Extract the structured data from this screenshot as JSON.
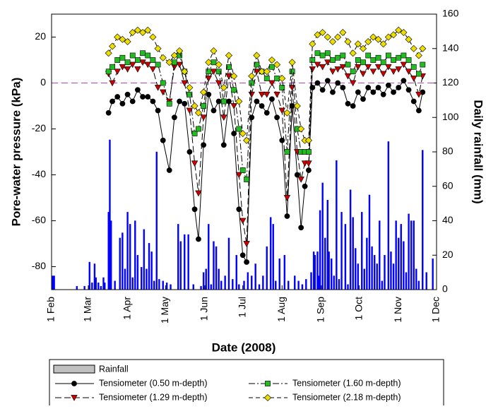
{
  "chart_data": {
    "type": "line",
    "xlabel": "Date (2008)",
    "ylabel": "Pore-water pressure (kPa)",
    "y2label": "Daily rainfall (mm)",
    "xlim": [
      0,
      304
    ],
    "ylim": [
      -90,
      30
    ],
    "y2lim": [
      0,
      160
    ],
    "xticks": [
      {
        "value": 0,
        "label": "1 Feb"
      },
      {
        "value": 29,
        "label": "1 Mar"
      },
      {
        "value": 60,
        "label": "1 Apr"
      },
      {
        "value": 90,
        "label": "1 May"
      },
      {
        "value": 121,
        "label": "1 Jun"
      },
      {
        "value": 151,
        "label": "1 Jul"
      },
      {
        "value": 182,
        "label": "1 Aug"
      },
      {
        "value": 213,
        "label": "1 Sep"
      },
      {
        "value": 243,
        "label": "1 Oct"
      },
      {
        "value": 274,
        "label": "1 Nov"
      },
      {
        "value": 304,
        "label": "1 Dec"
      }
    ],
    "yticks": [
      -80,
      -60,
      -40,
      -20,
      0,
      20
    ],
    "y2ticks": [
      0,
      20,
      40,
      60,
      80,
      100,
      120,
      140,
      160
    ],
    "hline": 0,
    "hline_color": "#c040c0",
    "x": [
      45,
      48,
      52,
      56,
      60,
      64,
      68,
      72,
      76,
      80,
      84,
      88,
      93,
      97,
      101,
      105,
      109,
      113,
      116,
      120,
      124,
      128,
      132,
      136,
      140,
      144,
      148,
      151,
      154,
      158,
      162,
      166,
      170,
      174,
      178,
      182,
      186,
      190,
      194,
      197,
      200,
      203,
      206,
      210,
      214,
      218,
      222,
      226,
      230,
      234,
      238,
      242,
      246,
      250,
      254,
      258,
      262,
      266,
      270,
      274,
      278,
      282,
      286,
      290,
      293
    ],
    "series": [
      {
        "name": "Rainfall",
        "type": "bar",
        "axis": "y2",
        "color": "#0000ff",
        "x": [
          1,
          2,
          20,
          26,
          30,
          32,
          34,
          35,
          37,
          39,
          41,
          42,
          45,
          46,
          47,
          50,
          54,
          56,
          58,
          60,
          62,
          64,
          66,
          68,
          71,
          73,
          75,
          77,
          79,
          81,
          83,
          85,
          88,
          91,
          94,
          100,
          102,
          105,
          108,
          112,
          118,
          120,
          122,
          124,
          126,
          128,
          130,
          132,
          134,
          137,
          140,
          143,
          146,
          148,
          152,
          155,
          158,
          161,
          164,
          167,
          170,
          173,
          175,
          177,
          180,
          184,
          187,
          192,
          195,
          198,
          201,
          205,
          207,
          208,
          210,
          211,
          212,
          214,
          216,
          218,
          219,
          221,
          223,
          225,
          227,
          229,
          232,
          234,
          236,
          238,
          240,
          242,
          245,
          247,
          249,
          251,
          253,
          255,
          257,
          259,
          261,
          263,
          266,
          268,
          270,
          272,
          274,
          276,
          278,
          280,
          282,
          284,
          286,
          288,
          290,
          293,
          296,
          301
        ],
        "values": [
          8,
          8,
          2,
          2,
          16,
          4,
          15,
          7,
          4,
          2,
          7,
          4,
          45,
          87,
          40,
          5,
          30,
          33,
          12,
          45,
          38,
          7,
          40,
          20,
          13,
          35,
          12,
          27,
          22,
          5,
          80,
          6,
          5,
          4,
          3,
          38,
          28,
          32,
          32,
          3,
          2,
          10,
          12,
          38,
          3,
          28,
          25,
          12,
          5,
          8,
          30,
          6,
          20,
          3,
          5,
          10,
          8,
          15,
          3,
          8,
          25,
          42,
          38,
          5,
          18,
          20,
          5,
          8,
          5,
          3,
          6,
          10,
          22,
          20,
          22,
          8,
          46,
          62,
          30,
          52,
          22,
          18,
          8,
          75,
          6,
          45,
          38,
          3,
          58,
          42,
          24,
          15,
          45,
          12,
          30,
          55,
          25,
          20,
          15,
          40,
          5,
          20,
          86,
          22,
          15,
          40,
          30,
          38,
          28,
          10,
          44,
          40,
          40,
          12,
          5,
          81,
          10,
          18
        ]
      },
      {
        "name": "Tensiometer (0.50 m-depth)",
        "color": "#000000",
        "marker": "circle",
        "dash": "none",
        "values": [
          -13,
          -8,
          -6,
          -9,
          -5,
          -8,
          -3,
          -6,
          -6,
          -8,
          -12,
          -25,
          -38,
          -15,
          -8,
          -9,
          -30,
          -55,
          -68,
          -27,
          -5,
          -12,
          -8,
          -27,
          -8,
          -22,
          -55,
          -75,
          -78,
          -15,
          -8,
          -10,
          -13,
          -7,
          -15,
          -25,
          -58,
          -10,
          -40,
          -63,
          -45,
          -38,
          -2,
          0,
          -3,
          1,
          -4,
          0,
          -2,
          -9,
          -10,
          -4,
          -7,
          -2,
          -4,
          -2,
          -5,
          -1,
          -4,
          -2,
          1,
          -3,
          -8,
          -12,
          -4
        ]
      },
      {
        "name": "Tensiometer (1.29 m-depth)",
        "color": "#cc0000",
        "marker": "triangle",
        "dash": "9,4",
        "values": [
          4,
          0,
          5,
          7,
          6,
          8,
          6,
          9,
          8,
          6,
          -2,
          -4,
          -8,
          7,
          8,
          0,
          -12,
          -35,
          -48,
          -15,
          2,
          5,
          0,
          -15,
          3,
          -10,
          -40,
          -60,
          -70,
          -5,
          5,
          -5,
          -5,
          0,
          -5,
          -12,
          -50,
          -2,
          -30,
          -42,
          -35,
          -35,
          6,
          8,
          7,
          9,
          5,
          6,
          7,
          3,
          0,
          7,
          4,
          7,
          5,
          7,
          4,
          7,
          5,
          6,
          8,
          5,
          2,
          -5,
          3
        ]
      },
      {
        "name": "Tensiometer (1.60 m-depth)",
        "color": "#22bb22",
        "marker": "square",
        "dash": "9,3,2,3",
        "values": [
          5,
          7,
          10,
          11,
          9,
          12,
          10,
          13,
          12,
          10,
          8,
          0,
          -9,
          9,
          12,
          5,
          -5,
          -22,
          -20,
          -10,
          5,
          9,
          5,
          -8,
          7,
          -3,
          -20,
          -38,
          -42,
          0,
          8,
          5,
          2,
          7,
          2,
          -2,
          -30,
          5,
          -20,
          -30,
          -30,
          -30,
          10,
          13,
          12,
          13,
          10,
          11,
          12,
          8,
          5,
          10,
          9,
          12,
          10,
          11,
          9,
          12,
          10,
          11,
          12,
          10,
          7,
          4,
          8
        ]
      },
      {
        "name": "Tensiometer (2.18 m-depth)",
        "color": "#eedd00",
        "marker": "diamond",
        "dash": "6,4",
        "values": [
          13,
          16,
          20,
          19,
          18,
          22,
          23,
          22,
          23,
          20,
          15,
          11,
          9,
          12,
          14,
          5,
          -2,
          -10,
          -13,
          -4,
          9,
          14,
          8,
          -2,
          12,
          3,
          -8,
          -22,
          -25,
          3,
          12,
          5,
          5,
          10,
          8,
          2,
          -13,
          9,
          -10,
          -20,
          -25,
          -25,
          17,
          21,
          22,
          20,
          18,
          20,
          22,
          18,
          13,
          17,
          15,
          18,
          20,
          19,
          17,
          20,
          21,
          23,
          22,
          19,
          15,
          12,
          15
        ]
      }
    ]
  }
}
